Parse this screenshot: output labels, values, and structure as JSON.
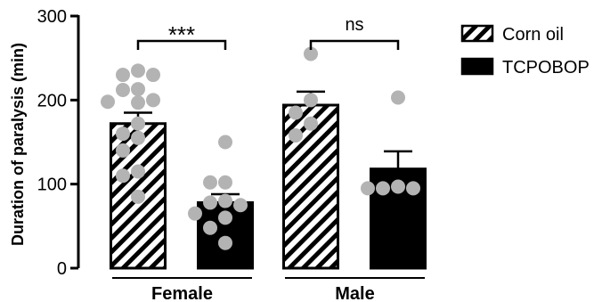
{
  "chart_data": {
    "type": "bar",
    "ylabel": "Duration of paralysis (min)",
    "xlabel": "",
    "ylim": [
      0,
      300
    ],
    "yticks": [
      0,
      100,
      200,
      300
    ],
    "categories": [
      "Female",
      "Male"
    ],
    "series": [
      {
        "name": "Corn oil",
        "pattern": "hatched",
        "color": "#000000",
        "values": [
          172,
          194
        ],
        "sem": [
          13,
          16
        ],
        "points": [
          [
            235,
            230,
            230,
            213,
            212,
            200,
            198,
            197,
            172,
            160,
            155,
            140,
            115,
            110,
            85
          ],
          [
            255,
            200,
            185,
            172,
            158
          ]
        ]
      },
      {
        "name": "TCPOBOP",
        "pattern": "solid",
        "color": "#000000",
        "values": [
          78,
          118
        ],
        "sem": [
          10,
          21
        ],
        "points": [
          [
            150,
            102,
            102,
            80,
            78,
            75,
            65,
            60,
            48,
            30
          ],
          [
            203,
            97,
            95,
            95,
            95
          ]
        ]
      }
    ],
    "point_color": "#b3b3b3",
    "significance": [
      {
        "group": "Female",
        "label": "***"
      },
      {
        "group": "Male",
        "label": "ns"
      }
    ],
    "legend_position": "top-right",
    "grid": false
  }
}
